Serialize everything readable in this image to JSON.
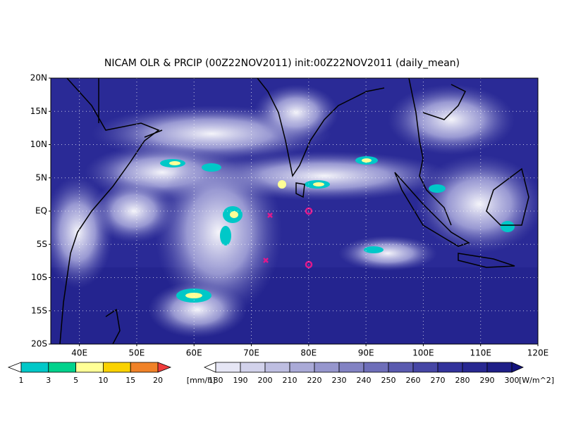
{
  "header": {
    "title": "NICAM OLR & PRCIP (00Z22NOV2011) init:00Z22NOV2011 (daily_mean)"
  },
  "map": {
    "lat_labels": [
      "20N",
      "15N",
      "10N",
      "5N",
      "EQ",
      "5S",
      "10S",
      "15S",
      "20S"
    ],
    "lon_labels": [
      "40E",
      "50E",
      "60E",
      "70E",
      "80E",
      "90E",
      "100E",
      "110E",
      "120E"
    ]
  },
  "legends": [
    {
      "labels": [
        "1",
        "3",
        "5",
        "10",
        "15",
        "20"
      ],
      "unit": "[mm/h]",
      "colors": [
        "#ffffff",
        "#00c8c8",
        "#00d28c",
        "#ffff96",
        "#fad200",
        "#f08228",
        "#f03c3c"
      ]
    },
    {
      "labels": [
        "180",
        "190",
        "200",
        "210",
        "220",
        "230",
        "240",
        "250",
        "260",
        "270",
        "280",
        "290",
        "300"
      ],
      "unit": "[W/m^2]",
      "colors": [
        "#ffffff",
        "#e6e6f5",
        "#d2d2eb",
        "#bebee1",
        "#aaaad7",
        "#9696cd",
        "#8282c3",
        "#6e6eb9",
        "#5a5aaf",
        "#4646a5",
        "#32329b",
        "#282891",
        "#1e1e87",
        "#14147d"
      ]
    }
  ]
}
